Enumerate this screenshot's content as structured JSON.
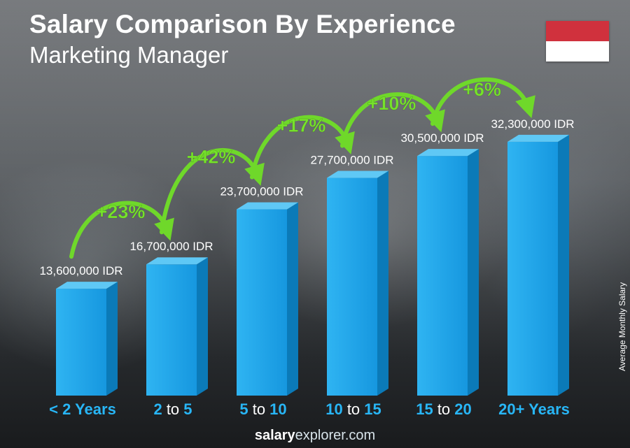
{
  "header": {
    "title": "Salary Comparison By Experience",
    "subtitle": "Marketing Manager"
  },
  "flag": {
    "top_color": "#d0313d",
    "bottom_color": "#ffffff"
  },
  "footer": {
    "brand_bold": "salary",
    "brand_rest": "explorer.com"
  },
  "colors": {
    "bar_front": "#1aa3e8",
    "bar_side": "#0b7ab8",
    "bar_top": "#5fc8f5",
    "arrow": "#6fd82a",
    "pct_text": "#76e22b",
    "category_accent": "#28b6f6"
  },
  "chart_data": {
    "type": "bar",
    "title": "Salary Comparison By Experience",
    "subtitle": "Marketing Manager",
    "ylabel": "Average Monthly Salary",
    "categories": [
      {
        "label": "< 2 Years",
        "parts": [
          {
            "t": "< 2 Years",
            "a": true
          }
        ]
      },
      {
        "label": "2 to 5",
        "parts": [
          {
            "t": "2",
            "a": true
          },
          {
            "t": " to ",
            "a": false
          },
          {
            "t": "5",
            "a": true
          }
        ]
      },
      {
        "label": "5 to 10",
        "parts": [
          {
            "t": "5",
            "a": true
          },
          {
            "t": " to ",
            "a": false
          },
          {
            "t": "10",
            "a": true
          }
        ]
      },
      {
        "label": "10 to 15",
        "parts": [
          {
            "t": "10",
            "a": true
          },
          {
            "t": " to ",
            "a": false
          },
          {
            "t": "15",
            "a": true
          }
        ]
      },
      {
        "label": "15 to 20",
        "parts": [
          {
            "t": "15",
            "a": true
          },
          {
            "t": " to ",
            "a": false
          },
          {
            "t": "20",
            "a": true
          }
        ]
      },
      {
        "label": "20+ Years",
        "parts": [
          {
            "t": "20+ Years",
            "a": true
          }
        ]
      }
    ],
    "values": [
      13600000,
      16700000,
      23700000,
      27700000,
      30500000,
      32300000
    ],
    "value_labels": [
      "13,600,000 IDR",
      "16,700,000 IDR",
      "23,700,000 IDR",
      "27,700,000 IDR",
      "30,500,000 IDR",
      "32,300,000 IDR"
    ],
    "increases": [
      "+23%",
      "+42%",
      "+17%",
      "+10%",
      "+6%"
    ],
    "ylim": [
      0,
      37000000
    ],
    "grid": false,
    "legend": "none"
  }
}
